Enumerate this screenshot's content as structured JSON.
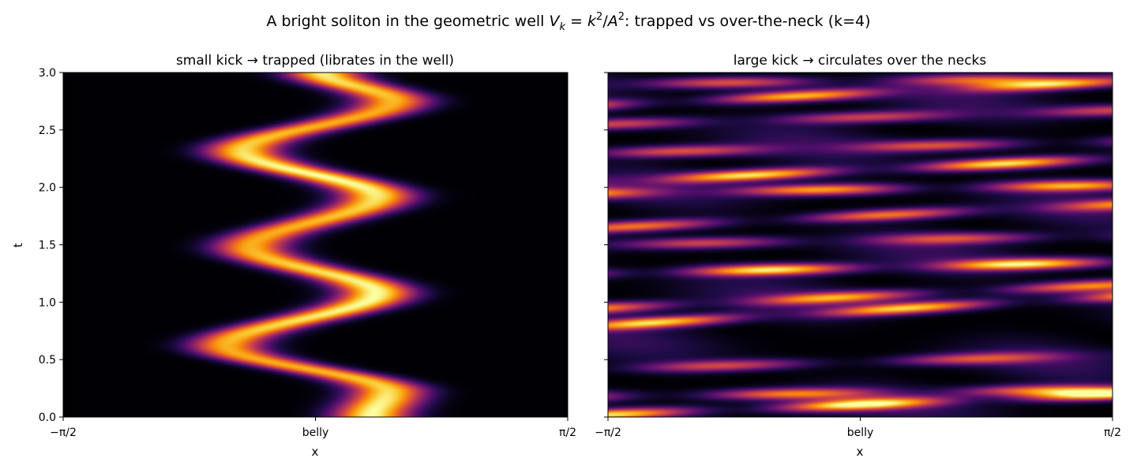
{
  "figure": {
    "suptitle_pre": "A bright soliton in the geometric well ",
    "suptitle_mid": ": trapped vs over-the-neck (k=4)",
    "suptitle_math": {
      "V": "V",
      "k_sub": "k",
      "eq": " = ",
      "k": "k",
      "sq": "2",
      "slash": "/",
      "A": "A",
      "sq2": "2"
    }
  },
  "chart_data": [
    {
      "type": "heatmap",
      "title": "small kick → trapped (librates in the well)",
      "xlabel": "x",
      "ylabel": "t",
      "x_ticks": [
        "−π/2",
        "belly",
        "π/2"
      ],
      "x_range": [
        -1.5708,
        1.5708
      ],
      "y_ticks": [
        "0.0",
        "0.5",
        "1.0",
        "1.5",
        "2.0",
        "2.5",
        "3.0"
      ],
      "ylim": [
        0,
        3
      ],
      "colormap": "inferno",
      "description_of_field": "single bright ridge oscillating left/right",
      "ridge_turning_points": [
        {
          "t": 0.0,
          "x": 0.35
        },
        {
          "t": 0.22,
          "x": 0.45
        },
        {
          "t": 0.62,
          "x": -0.55
        },
        {
          "t": 1.08,
          "x": 0.38
        },
        {
          "t": 1.48,
          "x": -0.4
        },
        {
          "t": 1.92,
          "x": 0.38
        },
        {
          "t": 2.32,
          "x": -0.45
        },
        {
          "t": 2.75,
          "x": 0.48
        },
        {
          "t": 3.0,
          "x": 0.05
        }
      ]
    },
    {
      "type": "heatmap",
      "title": "large kick → circulates over the necks",
      "xlabel": "x",
      "ylabel": "",
      "x_ticks": [
        "−π/2",
        "belly",
        "π/2"
      ],
      "x_range": [
        -1.5708,
        1.5708
      ],
      "y_ticks": [
        "0.0",
        "0.5",
        "1.0",
        "1.5",
        "2.0",
        "2.5",
        "3.0"
      ],
      "ylim": [
        0,
        3
      ],
      "shared_y": true,
      "colormap": "inferno",
      "description_of_field": "many streaks drifting rightward, wrapping periodically",
      "streaks": [
        {
          "t0": 0.02,
          "slope": 0.18,
          "amp": 0.95
        },
        {
          "t0": 0.18,
          "slope": 0.06,
          "amp": 0.7
        },
        {
          "t0": 0.42,
          "slope": 0.12,
          "amp": 0.55
        },
        {
          "t0": 0.8,
          "slope": 0.25,
          "amp": 0.9
        },
        {
          "t0": 0.95,
          "slope": 0.2,
          "amp": 0.75
        },
        {
          "t0": 1.25,
          "slope": 0.1,
          "amp": 0.95
        },
        {
          "t0": 1.5,
          "slope": 0.08,
          "amp": 0.55
        },
        {
          "t0": 1.65,
          "slope": 0.2,
          "amp": 0.7
        },
        {
          "t0": 1.95,
          "slope": 0.07,
          "amp": 0.8
        },
        {
          "t0": 2.05,
          "slope": 0.2,
          "amp": 0.95
        },
        {
          "t0": 2.3,
          "slope": 0.1,
          "amp": 0.6
        },
        {
          "t0": 2.55,
          "slope": 0.12,
          "amp": 0.55
        },
        {
          "t0": 2.72,
          "slope": 0.2,
          "amp": 0.85
        },
        {
          "t0": 2.9,
          "slope": 0.05,
          "amp": 0.6
        }
      ]
    }
  ]
}
